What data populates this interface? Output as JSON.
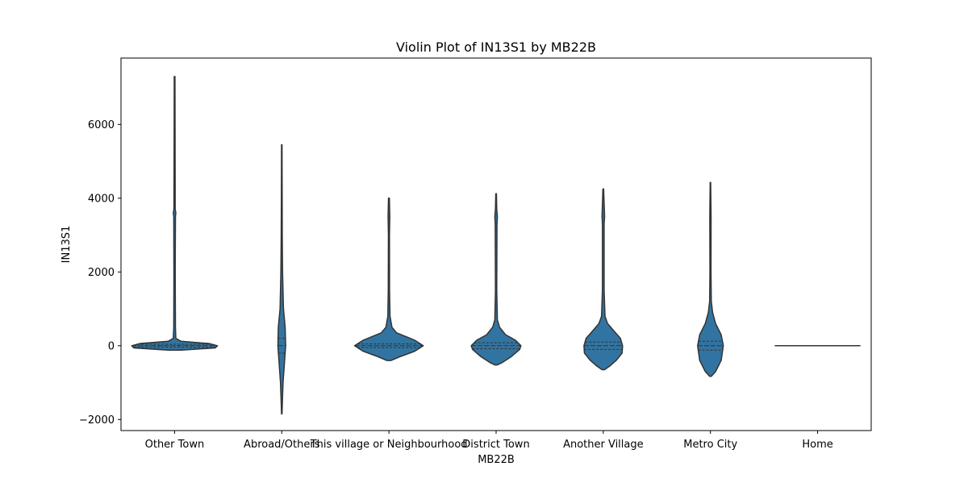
{
  "chart_data": {
    "type": "violin",
    "title": "Violin Plot of IN13S1 by MB22B",
    "xlabel": "MB22B",
    "ylabel": "IN13S1",
    "ylim": [
      -2300,
      7800
    ],
    "yticks": [
      -2000,
      0,
      2000,
      4000,
      6000
    ],
    "ytick_labels": [
      "−2000",
      "0",
      "2000",
      "4000",
      "6000"
    ],
    "grid": false,
    "legend": "none",
    "colors": {
      "violin_fill": "#3274a1",
      "outline": "#333333",
      "axis": "#000000"
    },
    "categories": [
      "Other Town",
      "Abroad/Others",
      "This village or Neighbourhood",
      "District Town",
      "Another Village",
      "Metro City",
      "Home"
    ],
    "violins": [
      {
        "category": "Other Town",
        "min": -120,
        "max": 7300,
        "q1": -40,
        "median": 0,
        "q3": 40,
        "density": [
          [
            -120,
            0.15
          ],
          [
            -60,
            0.95
          ],
          [
            0,
            1.0
          ],
          [
            60,
            0.8
          ],
          [
            120,
            0.15
          ],
          [
            200,
            0.03
          ],
          [
            500,
            0.02
          ],
          [
            2000,
            0.015
          ],
          [
            3500,
            0.02
          ],
          [
            3600,
            0.03
          ],
          [
            3700,
            0.015
          ],
          [
            5000,
            0.012
          ],
          [
            7300,
            0.008
          ]
        ]
      },
      {
        "category": "Abroad/Others",
        "min": -1850,
        "max": 5450,
        "q1": -200,
        "median": 0,
        "q3": 200,
        "density": [
          [
            -1850,
            0.005
          ],
          [
            -1500,
            0.015
          ],
          [
            -1000,
            0.03
          ],
          [
            -500,
            0.06
          ],
          [
            0,
            0.09
          ],
          [
            500,
            0.08
          ],
          [
            1000,
            0.04
          ],
          [
            2000,
            0.02
          ],
          [
            3000,
            0.012
          ],
          [
            4000,
            0.01
          ],
          [
            5450,
            0.005
          ]
        ]
      },
      {
        "category": "This village or Neighbourhood",
        "min": -400,
        "max": 4000,
        "q1": -50,
        "median": 0,
        "q3": 50,
        "density": [
          [
            -400,
            0.05
          ],
          [
            -300,
            0.25
          ],
          [
            -150,
            0.6
          ],
          [
            0,
            0.8
          ],
          [
            150,
            0.6
          ],
          [
            350,
            0.18
          ],
          [
            500,
            0.07
          ],
          [
            800,
            0.025
          ],
          [
            1500,
            0.015
          ],
          [
            3000,
            0.012
          ],
          [
            3500,
            0.02
          ],
          [
            4000,
            0.01
          ]
        ]
      },
      {
        "category": "District Town",
        "min": -520,
        "max": 4120,
        "q1": -80,
        "median": 0,
        "q3": 80,
        "density": [
          [
            -520,
            0.03
          ],
          [
            -450,
            0.15
          ],
          [
            -300,
            0.35
          ],
          [
            -100,
            0.55
          ],
          [
            0,
            0.58
          ],
          [
            150,
            0.45
          ],
          [
            300,
            0.22
          ],
          [
            500,
            0.08
          ],
          [
            700,
            0.03
          ],
          [
            1500,
            0.015
          ],
          [
            3300,
            0.02
          ],
          [
            3500,
            0.03
          ],
          [
            3700,
            0.015
          ],
          [
            4120,
            0.008
          ]
        ]
      },
      {
        "category": "Another Village",
        "min": -650,
        "max": 4250,
        "q1": -100,
        "median": 0,
        "q3": 100,
        "density": [
          [
            -650,
            0.03
          ],
          [
            -550,
            0.15
          ],
          [
            -400,
            0.3
          ],
          [
            -200,
            0.44
          ],
          [
            0,
            0.45
          ],
          [
            200,
            0.4
          ],
          [
            400,
            0.25
          ],
          [
            600,
            0.1
          ],
          [
            800,
            0.04
          ],
          [
            1500,
            0.02
          ],
          [
            3300,
            0.02
          ],
          [
            3500,
            0.03
          ],
          [
            4250,
            0.008
          ]
        ]
      },
      {
        "category": "Metro City",
        "min": -830,
        "max": 4430,
        "q1": -120,
        "median": 0,
        "q3": 120,
        "density": [
          [
            -830,
            0.02
          ],
          [
            -700,
            0.12
          ],
          [
            -400,
            0.25
          ],
          [
            0,
            0.3
          ],
          [
            300,
            0.25
          ],
          [
            600,
            0.12
          ],
          [
            900,
            0.05
          ],
          [
            1200,
            0.02
          ],
          [
            2000,
            0.012
          ],
          [
            3500,
            0.015
          ],
          [
            4430,
            0.005
          ]
        ]
      },
      {
        "category": "Home",
        "min": 0,
        "max": 0,
        "median": 0,
        "density": []
      }
    ]
  }
}
